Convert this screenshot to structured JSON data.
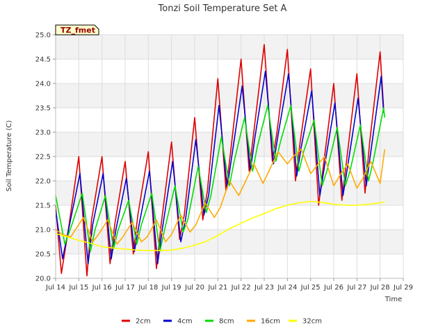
{
  "chart_data": {
    "type": "line",
    "title": "Tonzi Soil Temperature Set A",
    "xlabel": "Time",
    "ylabel": "Soil Temperature (C)",
    "badge": "TZ_fmet",
    "xlim": [
      14,
      29
    ],
    "ylim": [
      20.0,
      25.0
    ],
    "x_ticks": [
      14,
      15,
      16,
      17,
      18,
      19,
      20,
      21,
      22,
      23,
      24,
      25,
      26,
      27,
      28,
      29
    ],
    "x_tick_labels": [
      "Jul 14",
      "Jul 15",
      "Jul 16",
      "Jul 17",
      "Jul 18",
      "Jul 19",
      "Jul 20",
      "Jul 21",
      "Jul 22",
      "Jul 23",
      "Jul 24",
      "Jul 25",
      "Jul 26",
      "Jul 27",
      "Jul 28",
      "Jul 29"
    ],
    "y_ticks": [
      20.0,
      20.5,
      21.0,
      21.5,
      22.0,
      22.5,
      23.0,
      23.5,
      24.0,
      24.5,
      25.0
    ],
    "y_tick_labels": [
      "20.0",
      "20.5",
      "21.0",
      "21.5",
      "22.0",
      "22.5",
      "23.0",
      "23.5",
      "24.0",
      "24.5",
      "25.0"
    ],
    "grid": true,
    "legend_position": "bottom",
    "series": [
      {
        "name": "2cm",
        "color": "#dd0000",
        "x": [
          14.0,
          14.25,
          14.55,
          15.0,
          15.35,
          15.55,
          16.0,
          16.35,
          16.55,
          17.0,
          17.35,
          17.55,
          18.0,
          18.35,
          18.55,
          19.0,
          19.35,
          19.55,
          20.0,
          20.35,
          20.55,
          21.0,
          21.35,
          21.55,
          22.0,
          22.35,
          22.55,
          23.0,
          23.35,
          23.55,
          24.0,
          24.35,
          24.55,
          25.0,
          25.35,
          25.55,
          26.0,
          26.35,
          26.55,
          27.0,
          27.35,
          27.55,
          28.0,
          28.15
        ],
        "y": [
          21.5,
          20.1,
          21.0,
          22.5,
          20.05,
          21.2,
          22.5,
          20.3,
          21.1,
          22.4,
          20.5,
          21.3,
          22.6,
          20.2,
          21.1,
          22.8,
          20.8,
          21.3,
          23.3,
          21.2,
          21.8,
          24.1,
          21.8,
          22.6,
          24.5,
          22.2,
          23.0,
          24.8,
          22.4,
          23.0,
          24.7,
          22.0,
          22.8,
          24.3,
          21.5,
          22.3,
          24.0,
          21.6,
          22.4,
          24.2,
          21.75,
          22.8,
          24.65,
          23.5
        ]
      },
      {
        "name": "4cm",
        "color": "#0000cc",
        "x": [
          14.0,
          14.3,
          14.6,
          15.05,
          15.4,
          15.6,
          16.05,
          16.4,
          16.6,
          17.05,
          17.4,
          17.6,
          18.05,
          18.4,
          18.6,
          19.05,
          19.4,
          19.6,
          20.05,
          20.4,
          20.6,
          21.05,
          21.4,
          21.6,
          22.05,
          22.4,
          22.6,
          23.05,
          23.4,
          23.6,
          24.05,
          24.4,
          24.6,
          25.05,
          25.4,
          25.6,
          26.05,
          26.4,
          26.6,
          27.05,
          27.4,
          27.6,
          28.05,
          28.15
        ],
        "y": [
          21.4,
          20.4,
          21.1,
          22.15,
          20.3,
          21.1,
          22.15,
          20.4,
          21.0,
          22.05,
          20.55,
          21.1,
          22.2,
          20.3,
          21.0,
          22.4,
          20.75,
          21.2,
          22.85,
          21.3,
          21.7,
          23.55,
          21.85,
          22.5,
          23.95,
          22.2,
          22.9,
          24.25,
          22.35,
          22.95,
          24.2,
          22.1,
          22.7,
          23.85,
          21.7,
          22.3,
          23.6,
          21.7,
          22.3,
          23.7,
          21.9,
          22.6,
          24.15,
          23.4
        ]
      },
      {
        "name": "8cm",
        "color": "#00dd00",
        "x": [
          14.0,
          14.4,
          14.7,
          15.15,
          15.5,
          15.7,
          16.15,
          16.5,
          16.7,
          17.15,
          17.5,
          17.7,
          18.15,
          18.5,
          18.7,
          19.15,
          19.5,
          19.7,
          20.15,
          20.5,
          20.7,
          21.15,
          21.5,
          21.7,
          22.15,
          22.5,
          22.7,
          23.15,
          23.5,
          23.7,
          24.15,
          24.5,
          24.7,
          25.15,
          25.5,
          25.7,
          26.15,
          26.5,
          26.7,
          27.15,
          27.5,
          27.7,
          28.15,
          28.2
        ],
        "y": [
          21.7,
          20.7,
          21.1,
          21.75,
          20.55,
          21.0,
          21.7,
          20.6,
          21.0,
          21.6,
          20.7,
          21.1,
          21.75,
          20.55,
          21.0,
          21.9,
          20.95,
          21.2,
          22.3,
          21.35,
          21.7,
          22.9,
          21.9,
          22.4,
          23.3,
          22.2,
          22.7,
          23.55,
          22.4,
          22.8,
          23.55,
          22.2,
          22.6,
          23.25,
          21.9,
          22.2,
          23.1,
          21.9,
          22.2,
          23.15,
          22.0,
          22.4,
          23.5,
          23.3
        ]
      },
      {
        "name": "16cm",
        "color": "#ffaa00",
        "x": [
          14.0,
          14.3,
          14.65,
          15.2,
          15.6,
          15.85,
          16.25,
          16.65,
          16.9,
          17.3,
          17.7,
          17.95,
          18.35,
          18.75,
          19.0,
          19.4,
          19.8,
          20.05,
          20.45,
          20.85,
          21.1,
          21.5,
          21.9,
          22.15,
          22.55,
          22.95,
          23.2,
          23.6,
          24.0,
          24.25,
          24.6,
          25.0,
          25.25,
          25.6,
          26.0,
          26.25,
          26.6,
          27.0,
          27.25,
          27.6,
          28.0,
          28.2
        ],
        "y": [
          21.0,
          20.9,
          20.85,
          21.25,
          20.75,
          20.9,
          21.2,
          20.7,
          20.85,
          21.15,
          20.75,
          20.85,
          21.2,
          20.75,
          20.9,
          21.3,
          20.95,
          21.1,
          21.55,
          21.25,
          21.45,
          22.0,
          21.7,
          21.95,
          22.35,
          21.95,
          22.2,
          22.6,
          22.35,
          22.5,
          22.65,
          22.15,
          22.3,
          22.5,
          21.9,
          22.1,
          22.35,
          21.85,
          22.05,
          22.4,
          21.95,
          22.65
        ]
      },
      {
        "name": "32cm",
        "color": "#ffff00",
        "x": [
          14.0,
          14.5,
          15.0,
          15.5,
          16.0,
          16.5,
          17.0,
          17.5,
          18.0,
          18.5,
          19.0,
          19.5,
          20.0,
          20.5,
          21.0,
          21.5,
          22.0,
          22.5,
          23.0,
          23.5,
          24.0,
          24.5,
          25.0,
          25.5,
          26.0,
          26.5,
          27.0,
          27.5,
          28.0,
          28.2
        ],
        "y": [
          20.92,
          20.85,
          20.78,
          20.72,
          20.65,
          20.62,
          20.6,
          20.58,
          20.57,
          20.57,
          20.58,
          20.62,
          20.68,
          20.76,
          20.88,
          21.02,
          21.13,
          21.24,
          21.33,
          21.43,
          21.5,
          21.55,
          21.58,
          21.56,
          21.52,
          21.5,
          21.5,
          21.52,
          21.55,
          21.57
        ]
      }
    ]
  }
}
